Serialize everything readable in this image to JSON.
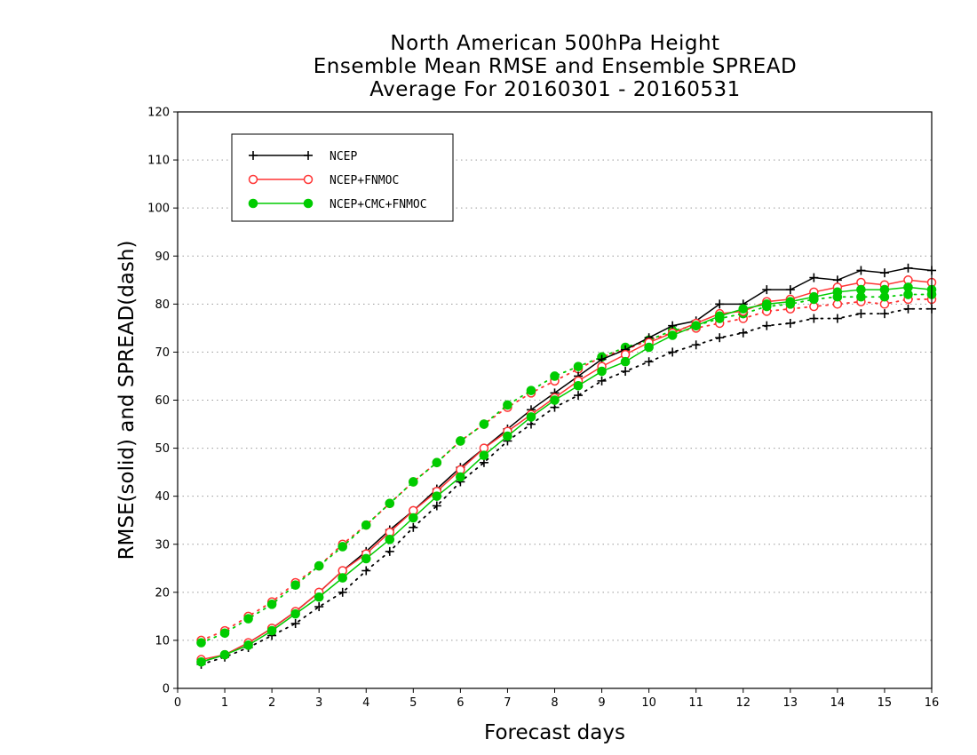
{
  "chart_data": {
    "type": "line",
    "title": [
      "North American 500hPa Height",
      "Ensemble Mean RMSE and Ensemble SPREAD",
      "Average For 20160301 - 20160531"
    ],
    "xlabel": "Forecast days",
    "ylabel": "RMSE(solid) and SPREAD(dash)",
    "xlim": [
      0,
      16
    ],
    "ylim": [
      0,
      120
    ],
    "xticks": [
      0,
      1,
      2,
      3,
      4,
      5,
      6,
      7,
      8,
      9,
      10,
      11,
      12,
      13,
      14,
      15,
      16
    ],
    "yticks": [
      0,
      10,
      20,
      30,
      40,
      50,
      60,
      70,
      80,
      90,
      100,
      110,
      120
    ],
    "grid": true,
    "legend_position": "top-left",
    "x": [
      0.5,
      1,
      1.5,
      2,
      2.5,
      3,
      3.5,
      4,
      4.5,
      5,
      5.5,
      6,
      6.5,
      7,
      7.5,
      8,
      8.5,
      9,
      9.5,
      10,
      10.5,
      11,
      11.5,
      12,
      12.5,
      13,
      13.5,
      14,
      14.5,
      15,
      15.5,
      16
    ],
    "series": [
      {
        "name": "NCEP",
        "metric": "RMSE",
        "color": "#000000",
        "marker": "plus",
        "values": [
          5.5,
          7,
          9.5,
          12.5,
          16,
          20,
          24.5,
          28.5,
          33,
          37,
          41.5,
          46,
          50,
          54,
          58,
          61.5,
          65,
          68.5,
          70.5,
          73,
          75.5,
          76.5,
          80,
          80,
          83,
          83,
          85.5,
          85,
          87,
          86.5,
          87.5,
          87
        ]
      },
      {
        "name": "NCEP+FNMOC",
        "metric": "RMSE",
        "color": "#ff3333",
        "marker": "open-circle",
        "values": [
          6,
          7,
          9.5,
          12.5,
          16,
          20,
          24.5,
          28,
          32.5,
          37,
          41,
          45.5,
          50,
          53.5,
          57,
          60.5,
          64,
          67,
          69.5,
          72,
          74,
          76,
          78,
          78.5,
          80.5,
          81,
          82.5,
          83.5,
          84.5,
          84,
          85,
          84.5
        ]
      },
      {
        "name": "NCEP+CMC+FNMOC",
        "metric": "RMSE",
        "color": "#00cc00",
        "marker": "filled-circle",
        "values": [
          5.5,
          7,
          9,
          12,
          15.5,
          19,
          23,
          27,
          31,
          35.5,
          40,
          44,
          48.5,
          52.5,
          56.5,
          60,
          63,
          66,
          68,
          71,
          73.5,
          75.5,
          77.5,
          79,
          80,
          80.5,
          81.5,
          82.5,
          83,
          83,
          83.5,
          83
        ]
      },
      {
        "name": "NCEP",
        "metric": "SPREAD",
        "color": "#000000",
        "marker": "plus",
        "values": [
          5,
          6.5,
          8.5,
          11,
          13.5,
          17,
          20,
          24.5,
          28.5,
          33.5,
          38,
          43,
          47,
          51.5,
          55,
          58.5,
          61,
          64,
          66,
          68,
          70,
          71.5,
          73,
          74,
          75.5,
          76,
          77,
          77,
          78,
          78,
          79,
          79
        ]
      },
      {
        "name": "NCEP+FNMOC",
        "metric": "SPREAD",
        "color": "#ff3333",
        "marker": "open-circle",
        "values": [
          10,
          12,
          15,
          18,
          22,
          25.5,
          30,
          34,
          38.5,
          43,
          47,
          51.5,
          55,
          58.5,
          61.5,
          64,
          66.5,
          69,
          70.5,
          72.5,
          74,
          75,
          76,
          77,
          78.5,
          79,
          79.5,
          80,
          80.5,
          80,
          81,
          81
        ]
      },
      {
        "name": "NCEP+CMC+FNMOC",
        "metric": "SPREAD",
        "color": "#00cc00",
        "marker": "filled-circle",
        "values": [
          9.5,
          11.5,
          14.5,
          17.5,
          21.5,
          25.5,
          29.5,
          34,
          38.5,
          43,
          47,
          51.5,
          55,
          59,
          62,
          65,
          67,
          69,
          71,
          72.5,
          74.5,
          75.5,
          77,
          78,
          79.5,
          80,
          81,
          81.5,
          81.5,
          81.5,
          82,
          82
        ]
      }
    ]
  }
}
